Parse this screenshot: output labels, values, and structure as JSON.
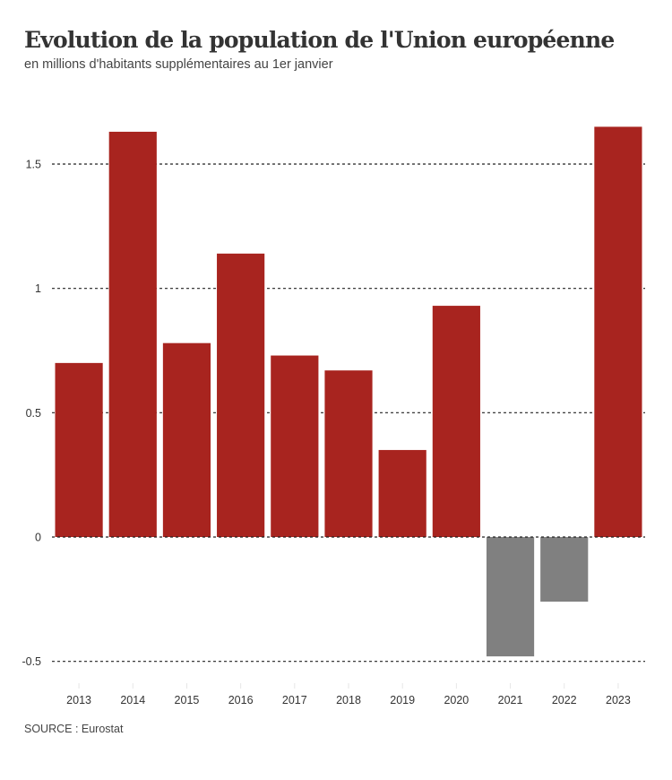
{
  "header": {
    "title": "Evolution de la population de l'Union européenne",
    "subtitle": "en millions d'habitants supplémentaires au 1er janvier"
  },
  "footer": {
    "source": "SOURCE : Eurostat"
  },
  "colors": {
    "positive": "#a8241f",
    "negative": "#808080",
    "grid": "#222222",
    "text": "#333333"
  },
  "chart_data": {
    "type": "bar",
    "title": "Evolution de la population de l'Union européenne",
    "subtitle": "en millions d'habitants supplémentaires au 1er janvier",
    "xlabel": "",
    "ylabel": "",
    "categories": [
      "2013",
      "2014",
      "2015",
      "2016",
      "2017",
      "2018",
      "2019",
      "2020",
      "2021",
      "2022",
      "2023"
    ],
    "values": [
      0.7,
      1.63,
      0.78,
      1.14,
      0.73,
      0.67,
      0.35,
      0.93,
      -0.48,
      -0.26,
      1.65
    ],
    "ylim": [
      -0.5,
      1.7
    ],
    "yticks": [
      -0.5,
      0,
      0.5,
      1,
      1.5
    ],
    "ytick_labels": [
      "-0.5",
      "0",
      "0.5",
      "1",
      "1.5"
    ],
    "grid": "horizontal dashed",
    "legend": "none",
    "source": "Eurostat"
  }
}
